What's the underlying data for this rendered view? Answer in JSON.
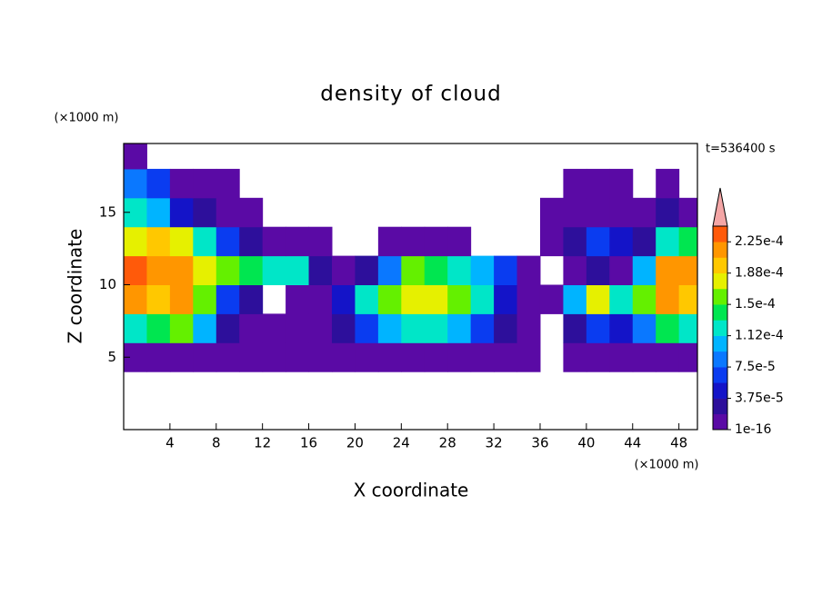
{
  "chart_data": {
    "type": "contour",
    "title": "density of cloud",
    "xlabel": "X coordinate",
    "ylabel": "Z coordinate",
    "x_unit": "(×1000 m)",
    "y_unit": "(×1000 m)",
    "time_label": "t=536400 s",
    "xlim": [
      0,
      49.6
    ],
    "ylim": [
      0,
      19.75
    ],
    "xticks": [
      4,
      8,
      12,
      16,
      20,
      24,
      28,
      32,
      36,
      40,
      44,
      48
    ],
    "yticks": [
      5,
      10,
      15
    ],
    "x": [
      1,
      3,
      5,
      7,
      9,
      11,
      13,
      15,
      17,
      19,
      21,
      23,
      25,
      27,
      29,
      31,
      33,
      35,
      37,
      39,
      41,
      43,
      45,
      47,
      49
    ],
    "z": [
      5,
      7,
      9,
      11,
      13,
      15,
      17,
      19
    ],
    "values": [
      [
        1e-05,
        1e-05,
        1e-05,
        1e-05,
        1e-05,
        1e-05,
        1e-05,
        1e-05,
        1e-05,
        1e-05,
        1e-05,
        1e-05,
        1e-05,
        1e-05,
        1e-05,
        1e-05,
        1e-05,
        1e-05,
        null,
        1e-05,
        1e-05,
        1e-05,
        1e-05,
        1e-05,
        1e-05
      ],
      [
        0.00012,
        0.00014,
        0.00016,
        0.0001,
        2.5e-05,
        1e-05,
        1e-05,
        1e-05,
        1e-05,
        2.5e-05,
        6e-05,
        0.0001,
        0.00012,
        0.00012,
        0.0001,
        6e-05,
        2.5e-05,
        1e-05,
        null,
        2.5e-05,
        6e-05,
        4.5e-05,
        8e-05,
        0.00014,
        0.00012
      ],
      [
        0.00022,
        0.0002,
        0.00022,
        0.00016,
        6e-05,
        2.5e-05,
        null,
        1e-05,
        1e-05,
        4.5e-05,
        0.00012,
        0.00016,
        0.00018,
        0.00018,
        0.00016,
        0.00012,
        4.5e-05,
        1e-05,
        1e-05,
        0.0001,
        0.00018,
        0.00012,
        0.00016,
        0.00022,
        0.0002
      ],
      [
        0.00023,
        0.00022,
        0.00022,
        0.00018,
        0.00016,
        0.00014,
        0.00012,
        0.00012,
        2.5e-05,
        1e-05,
        2.5e-05,
        8e-05,
        0.00016,
        0.00014,
        0.00012,
        0.0001,
        6e-05,
        1e-05,
        null,
        1e-05,
        2.5e-05,
        1e-05,
        0.0001,
        0.00022,
        0.00022
      ],
      [
        0.00018,
        0.0002,
        0.00018,
        0.00012,
        6e-05,
        2.5e-05,
        1e-05,
        1e-05,
        1e-05,
        null,
        null,
        1e-05,
        1e-05,
        1e-05,
        1e-05,
        null,
        null,
        null,
        1e-05,
        2.5e-05,
        6e-05,
        4.5e-05,
        2.5e-05,
        0.00012,
        0.00014
      ],
      [
        0.00012,
        0.0001,
        4.5e-05,
        2.5e-05,
        1e-05,
        1e-05,
        null,
        null,
        null,
        null,
        null,
        null,
        null,
        null,
        null,
        null,
        null,
        null,
        1e-05,
        1e-05,
        1e-05,
        1e-05,
        1e-05,
        2.5e-05,
        1e-05
      ],
      [
        8e-05,
        6e-05,
        1e-05,
        1e-05,
        1e-05,
        null,
        null,
        null,
        null,
        null,
        null,
        null,
        null,
        null,
        null,
        null,
        null,
        null,
        null,
        1e-05,
        1e-05,
        1e-05,
        null,
        1e-05,
        null
      ],
      [
        1e-05,
        null,
        null,
        null,
        null,
        null,
        null,
        null,
        null,
        null,
        null,
        null,
        null,
        null,
        null,
        null,
        null,
        null,
        null,
        null,
        null,
        null,
        null,
        null,
        null
      ]
    ],
    "levels": [
      1e-16,
      1.875e-05,
      3.75e-05,
      5.625e-05,
      7.5e-05,
      9.375e-05,
      0.0001125,
      0.00013125,
      0.00015,
      0.00016875,
      0.0001875,
      0.00020625,
      0.000225,
      0.00024375
    ],
    "colors": [
      "#5a0aa5",
      "#2d0f9b",
      "#1414c8",
      "#0a3cf0",
      "#0a78ff",
      "#00b4ff",
      "#00e6c8",
      "#00e650",
      "#64f000",
      "#e6f000",
      "#ffc800",
      "#ff9600",
      "#ff5a0a",
      "#e61e1e"
    ],
    "over_color": "#f4a6a6",
    "colorbar_ticks": [
      {
        "value": 1e-16,
        "label": "1e-16"
      },
      {
        "value": 3.75e-05,
        "label": "3.75e-5"
      },
      {
        "value": 7.5e-05,
        "label": "7.5e-5"
      },
      {
        "value": 0.0001125,
        "label": "1.12e-4"
      },
      {
        "value": 0.00015,
        "label": "1.5e-4"
      },
      {
        "value": 0.0001875,
        "label": "1.88e-4"
      },
      {
        "value": 0.000225,
        "label": "2.25e-4"
      }
    ]
  }
}
